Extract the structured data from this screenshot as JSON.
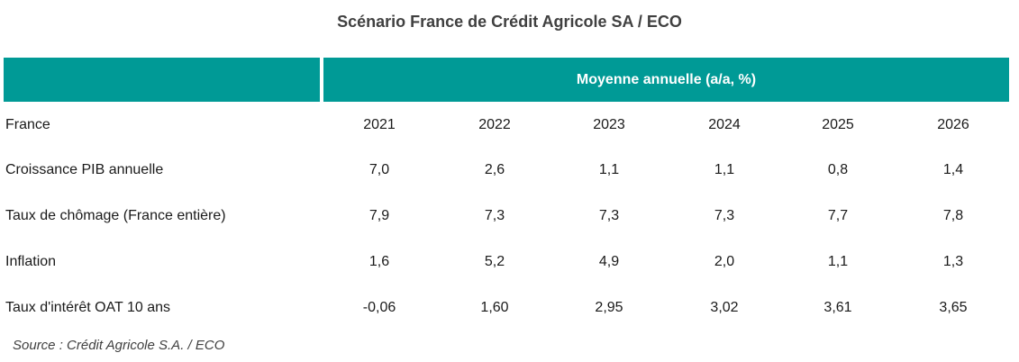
{
  "title": "Scénario France de Crédit Agricole SA / ECO",
  "table": {
    "group_header": "Moyenne annuelle (a/a, %)",
    "header_row": {
      "label": "France",
      "years": [
        "2021",
        "2022",
        "2023",
        "2024",
        "2025",
        "2026"
      ]
    },
    "rows": [
      {
        "label": "Croissance PIB annuelle",
        "values": [
          "7,0",
          "2,6",
          "1,1",
          "1,1",
          "0,8",
          "1,4"
        ]
      },
      {
        "label": "Taux de chômage (France entière)",
        "values": [
          "7,9",
          "7,3",
          "7,3",
          "7,3",
          "7,7",
          "7,8"
        ]
      },
      {
        "label": "Inflation",
        "values": [
          "1,6",
          "5,2",
          "4,9",
          "2,0",
          "1,1",
          "1,3"
        ]
      },
      {
        "label": "Taux d'intérêt OAT 10 ans",
        "values": [
          "-0,06",
          "1,60",
          "2,95",
          "3,02",
          "3,61",
          "3,65"
        ]
      }
    ]
  },
  "source": "Source : Crédit Agricole S.A. / ECO",
  "colors": {
    "header_band": "#009a96",
    "header_text": "#ffffff",
    "title_text": "#404040"
  }
}
